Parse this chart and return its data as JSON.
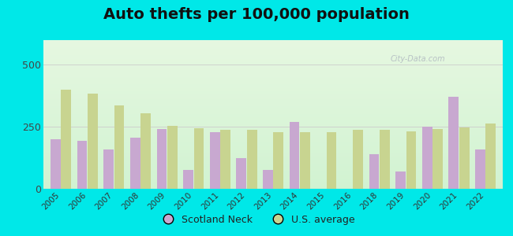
{
  "title": "Auto thefts per 100,000 population",
  "years": [
    2005,
    2006,
    2007,
    2008,
    2009,
    2010,
    2011,
    2012,
    2013,
    2014,
    2015,
    2016,
    2018,
    2019,
    2020,
    2021,
    2022
  ],
  "scotland_neck": [
    200,
    195,
    160,
    205,
    240,
    75,
    230,
    125,
    75,
    270,
    null,
    null,
    140,
    70,
    250,
    370,
    160
  ],
  "us_average": [
    400,
    385,
    335,
    305,
    255,
    245,
    238,
    238,
    228,
    228,
    228,
    238,
    238,
    232,
    242,
    248,
    262
  ],
  "scotland_neck_color": "#c8a8d0",
  "us_average_color": "#c8d490",
  "scotland_neck_label": "Scotland Neck",
  "us_average_label": "U.S. average",
  "ylim": [
    0,
    600
  ],
  "yticks": [
    0,
    250,
    500
  ],
  "outer_bg": "#00e8e8",
  "bar_width": 0.38,
  "title_fontsize": 14
}
